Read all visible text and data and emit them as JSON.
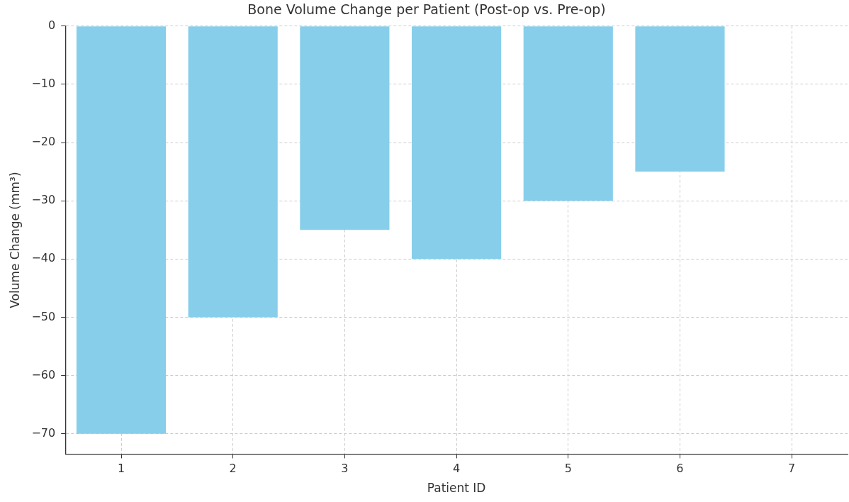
{
  "chart_data": {
    "type": "bar",
    "title": "Bone Volume Change per Patient (Post-op vs. Pre-op)",
    "xlabel": "Patient ID",
    "ylabel": "Volume Change (mm³)",
    "categories": [
      "1",
      "2",
      "3",
      "4",
      "5",
      "6",
      "7"
    ],
    "values": [
      -70,
      -50,
      -35,
      -40,
      -30,
      -25,
      null
    ],
    "color": "#87ceeb",
    "ylim": [
      -73.5,
      0
    ],
    "yticks": [
      0,
      -10,
      -20,
      -30,
      -40,
      -50,
      -60,
      -70
    ],
    "grid": true,
    "legend": false
  }
}
